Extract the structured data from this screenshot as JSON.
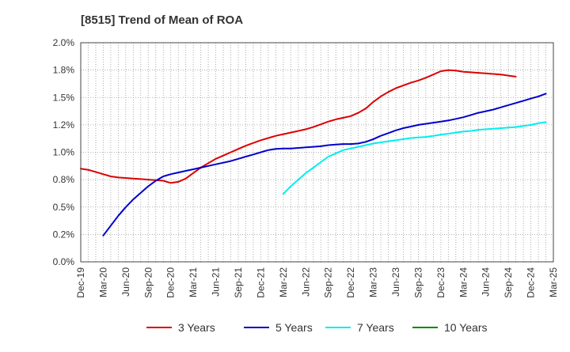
{
  "chart_data": {
    "type": "line",
    "title": "[8515]  Trend of Mean of ROA",
    "x_tick_labels": [
      "Dec-19",
      "Mar-20",
      "Jun-20",
      "Sep-20",
      "Dec-20",
      "Mar-21",
      "Jun-21",
      "Sep-21",
      "Dec-21",
      "Mar-22",
      "Jun-22",
      "Sep-22",
      "Dec-22",
      "Mar-23",
      "Jun-23",
      "Sep-23",
      "Dec-23",
      "Mar-24",
      "Jun-24",
      "Sep-24",
      "Dec-24",
      "Mar-25"
    ],
    "y_tick_labels": [
      "0.0%",
      "0.2%",
      "0.5%",
      "0.8%",
      "1.0%",
      "1.2%",
      "1.5%",
      "1.8%",
      "2.0%"
    ],
    "ylim": [
      0,
      2.0
    ],
    "y_unit": "%",
    "grid": true,
    "legend_position": "bottom",
    "series": [
      {
        "name": "3 Years",
        "color": "#dd0000",
        "values": [
          0.85,
          0.84,
          0.82,
          0.8,
          0.78,
          0.77,
          0.765,
          0.76,
          0.755,
          0.75,
          0.745,
          0.74,
          0.72,
          0.73,
          0.76,
          0.81,
          0.86,
          0.9,
          0.94,
          0.97,
          1.0,
          1.03,
          1.06,
          1.085,
          1.11,
          1.13,
          1.15,
          1.165,
          1.18,
          1.195,
          1.21,
          1.23,
          1.255,
          1.28,
          1.3,
          1.315,
          1.33,
          1.36,
          1.4,
          1.46,
          1.51,
          1.55,
          1.585,
          1.61,
          1.635,
          1.655,
          1.68,
          1.71,
          1.74,
          1.75,
          1.745,
          1.735,
          1.73,
          1.725,
          1.72,
          1.715,
          1.71,
          1.7,
          1.69
        ]
      },
      {
        "name": "5 Years",
        "color": "#0000cc",
        "values": [
          null,
          null,
          null,
          0.24,
          0.33,
          0.42,
          0.5,
          0.57,
          0.63,
          0.69,
          0.74,
          0.78,
          0.8,
          0.815,
          0.83,
          0.845,
          0.86,
          0.875,
          0.89,
          0.905,
          0.92,
          0.94,
          0.96,
          0.98,
          1.0,
          1.02,
          1.03,
          1.035,
          1.035,
          1.04,
          1.045,
          1.05,
          1.055,
          1.065,
          1.07,
          1.075,
          1.075,
          1.08,
          1.095,
          1.12,
          1.15,
          1.175,
          1.2,
          1.22,
          1.235,
          1.25,
          1.26,
          1.27,
          1.28,
          1.29,
          1.305,
          1.32,
          1.34,
          1.36,
          1.375,
          1.39,
          1.41,
          1.43,
          1.45,
          1.47,
          1.49,
          1.51,
          1.535
        ]
      },
      {
        "name": "7 Years",
        "color": "#00eeee",
        "values": [
          null,
          null,
          null,
          null,
          null,
          null,
          null,
          null,
          null,
          null,
          null,
          null,
          null,
          null,
          null,
          null,
          null,
          null,
          null,
          null,
          null,
          null,
          null,
          null,
          null,
          null,
          null,
          0.62,
          0.69,
          0.75,
          0.81,
          0.86,
          0.91,
          0.96,
          0.99,
          1.02,
          1.035,
          1.05,
          1.065,
          1.08,
          1.09,
          1.1,
          1.11,
          1.12,
          1.13,
          1.135,
          1.14,
          1.15,
          1.16,
          1.17,
          1.18,
          1.19,
          1.195,
          1.205,
          1.21,
          1.215,
          1.22,
          1.225,
          1.23,
          1.24,
          1.25,
          1.265,
          1.275
        ]
      },
      {
        "name": "10 Years",
        "color": "#008800",
        "values": []
      }
    ]
  }
}
